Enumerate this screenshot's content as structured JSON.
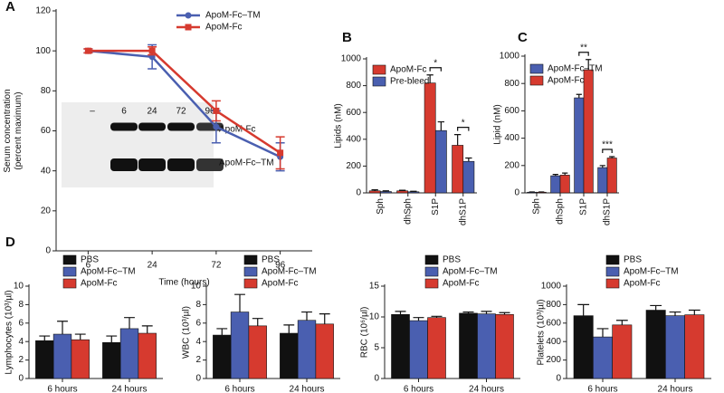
{
  "chart_data": [
    {
      "type": "line",
      "panel": "A",
      "ylabel": "Serum concentration (percent maximum)",
      "xlabel": "Time (hours)",
      "categories": [
        "6",
        "24",
        "72",
        "96"
      ],
      "ylim": [
        0,
        120
      ],
      "yticks": [
        0,
        20,
        40,
        60,
        80,
        100,
        120
      ],
      "series": [
        {
          "name": "ApoM-Fc–TM",
          "color": "#4a5fb0",
          "marker": "circle",
          "values": [
            100,
            97,
            62,
            47
          ],
          "errors": [
            1,
            6,
            8,
            7
          ]
        },
        {
          "name": "ApoM-Fc",
          "color": "#d63a2f",
          "marker": "square",
          "values": [
            100,
            100,
            70,
            49
          ],
          "errors": [
            1,
            2,
            5,
            8
          ]
        }
      ],
      "blot_lanes": [
        "–",
        "6",
        "24",
        "72",
        "96"
      ],
      "blot_bands": [
        "ApoM-Fc",
        "ApoM-Fc–TM"
      ]
    },
    {
      "type": "bar",
      "panel": "B",
      "ylabel": "Lipids (nM)",
      "categories": [
        "Sph",
        "dhSph",
        "S1P",
        "dhS1P"
      ],
      "ylim": [
        0,
        1000
      ],
      "yticks": [
        0,
        200,
        400,
        600,
        800,
        1000
      ],
      "rotate_labels": true,
      "series": [
        {
          "name": "ApoM-Fc",
          "color": "#d63a2f",
          "values": [
            15,
            15,
            820,
            355
          ],
          "errors": [
            8,
            5,
            60,
            80
          ]
        },
        {
          "name": "Pre-bleed",
          "color": "#4a5fb0",
          "values": [
            10,
            8,
            465,
            235
          ],
          "errors": [
            5,
            4,
            65,
            25
          ]
        }
      ],
      "significance": [
        null,
        null,
        "*",
        "*"
      ]
    },
    {
      "type": "bar",
      "panel": "C",
      "ylabel": "Lipid (nM)",
      "categories": [
        "Sph",
        "dhSph",
        "S1P",
        "dhS1P"
      ],
      "ylim": [
        0,
        1000
      ],
      "yticks": [
        0,
        200,
        400,
        600,
        800,
        1000
      ],
      "rotate_labels": true,
      "series": [
        {
          "name": "ApoM-Fc–TM",
          "color": "#4a5fb0",
          "values": [
            5,
            125,
            695,
            185
          ],
          "errors": [
            2,
            10,
            25,
            15
          ]
        },
        {
          "name": "ApoM-Fc",
          "color": "#d63a2f",
          "values": [
            5,
            130,
            900,
            255
          ],
          "errors": [
            2,
            15,
            75,
            10
          ]
        }
      ],
      "significance": [
        null,
        null,
        "**",
        "***"
      ]
    },
    {
      "type": "bar",
      "panel": "D",
      "ylabel": "Lymphocytes (10³/µl)",
      "categories": [
        "6 hours",
        "24 hours"
      ],
      "ylim": [
        0,
        10
      ],
      "yticks": [
        0,
        2,
        4,
        6,
        8,
        10
      ],
      "series": [
        {
          "name": "PBS",
          "color": "#111111",
          "values": [
            4.1,
            3.9
          ],
          "errors": [
            0.5,
            0.7
          ]
        },
        {
          "name": "ApoM-Fc–TM",
          "color": "#4a5fb0",
          "values": [
            4.8,
            5.4
          ],
          "errors": [
            1.4,
            1.2
          ]
        },
        {
          "name": "ApoM-Fc",
          "color": "#d63a2f",
          "values": [
            4.2,
            4.9
          ],
          "errors": [
            0.6,
            0.8
          ]
        }
      ]
    },
    {
      "type": "bar",
      "ylabel": "WBC (10³/µl)",
      "categories": [
        "6 hours",
        "24 hours"
      ],
      "ylim": [
        0,
        10
      ],
      "yticks": [
        0,
        2,
        4,
        6,
        8,
        10
      ],
      "series": [
        {
          "name": "PBS",
          "color": "#111111",
          "values": [
            4.7,
            4.9
          ],
          "errors": [
            0.7,
            0.9
          ]
        },
        {
          "name": "ApoM-Fc–TM",
          "color": "#4a5fb0",
          "values": [
            7.2,
            6.3
          ],
          "errors": [
            1.9,
            0.9
          ]
        },
        {
          "name": "ApoM-Fc",
          "color": "#d63a2f",
          "values": [
            5.7,
            5.9
          ],
          "errors": [
            0.8,
            1.1
          ]
        }
      ]
    },
    {
      "type": "bar",
      "ylabel": "RBC (10⁶/µl)",
      "categories": [
        "6 hours",
        "24 hours"
      ],
      "ylim": [
        0,
        15
      ],
      "yticks": [
        0,
        5,
        10,
        15
      ],
      "series": [
        {
          "name": "PBS",
          "color": "#111111",
          "values": [
            10.4,
            10.6
          ],
          "errors": [
            0.5,
            0.2
          ]
        },
        {
          "name": "ApoM-Fc–TM",
          "color": "#4a5fb0",
          "values": [
            9.4,
            10.5
          ],
          "errors": [
            0.5,
            0.4
          ]
        },
        {
          "name": "ApoM-Fc",
          "color": "#d63a2f",
          "values": [
            9.9,
            10.4
          ],
          "errors": [
            0.2,
            0.3
          ]
        }
      ]
    },
    {
      "type": "bar",
      "ylabel": "Platelets (10³/µl)",
      "categories": [
        "6 hours",
        "24 hours"
      ],
      "ylim": [
        0,
        1000
      ],
      "yticks": [
        0,
        200,
        400,
        600,
        800,
        1000
      ],
      "series": [
        {
          "name": "PBS",
          "color": "#111111",
          "values": [
            680,
            740
          ],
          "errors": [
            120,
            50
          ]
        },
        {
          "name": "ApoM-Fc–TM",
          "color": "#4a5fb0",
          "values": [
            450,
            680
          ],
          "errors": [
            90,
            40
          ]
        },
        {
          "name": "ApoM-Fc",
          "color": "#d63a2f",
          "values": [
            580,
            690
          ],
          "errors": [
            50,
            50
          ]
        }
      ]
    }
  ]
}
